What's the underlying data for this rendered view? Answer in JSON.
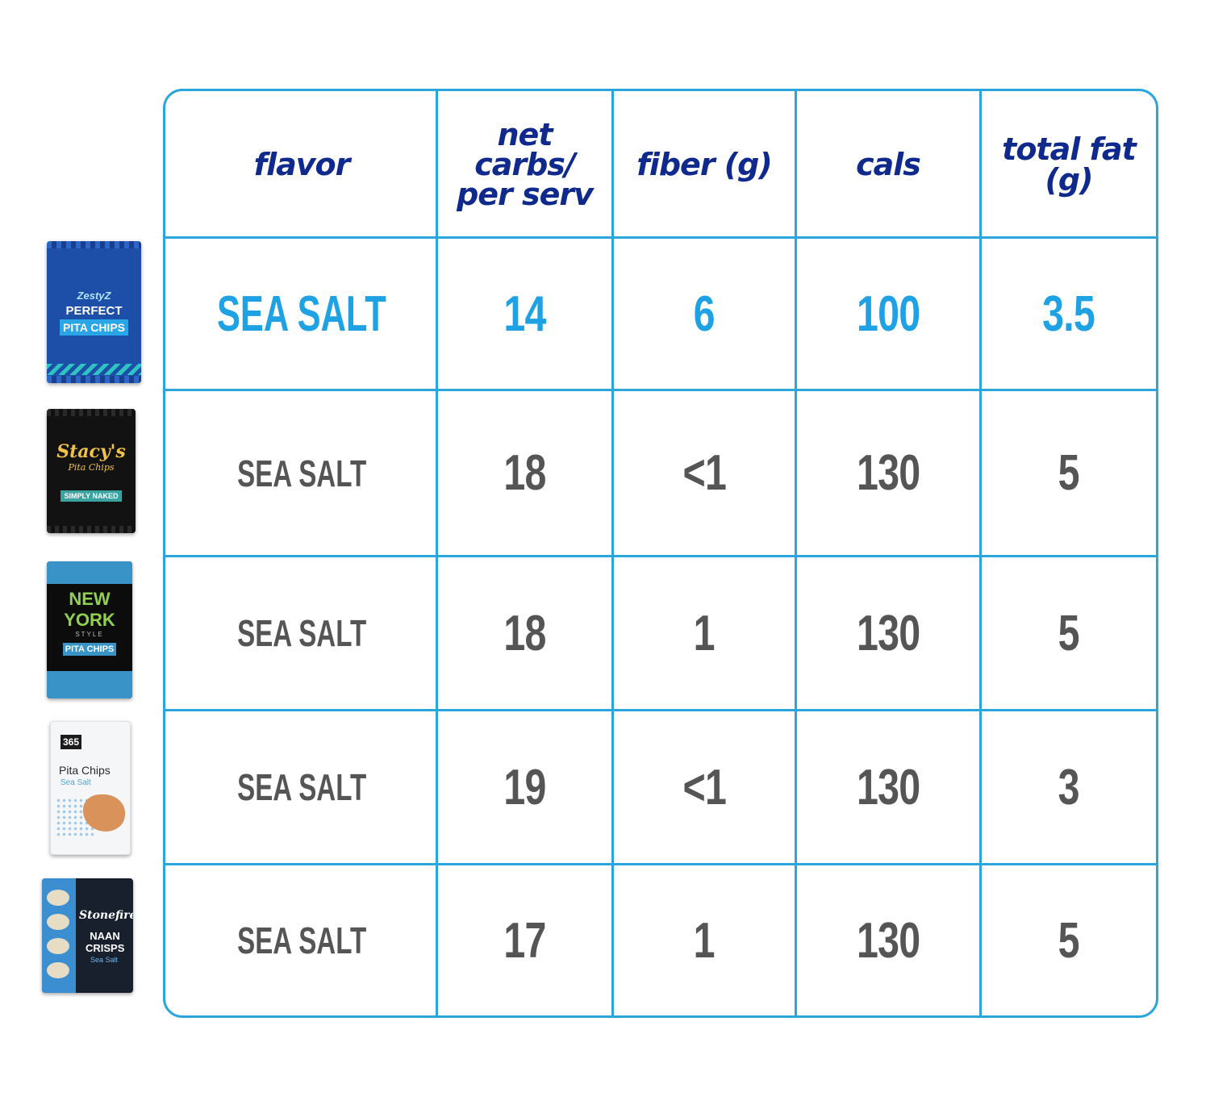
{
  "products": [
    {
      "name": "zesty-z-perfect-pita-chips",
      "brand": "ZestyZ",
      "title": "PERFECT",
      "subtitle": "PITA CHIPS"
    },
    {
      "name": "stacys-pita-chips",
      "brand": "Stacy's",
      "title": "Pita Chips",
      "subtitle": "SIMPLY NAKED"
    },
    {
      "name": "new-york-style-pita-chips",
      "brand": "NEW YORK",
      "title": "STYLE",
      "subtitle": "PITA CHIPS"
    },
    {
      "name": "365-pita-chips",
      "brand": "365",
      "title": "Pita Chips",
      "subtitle": "Sea Salt"
    },
    {
      "name": "stonefire-naan-crisps",
      "brand": "Stonefire",
      "title": "NAAN CRISPS",
      "subtitle": "Sea Salt"
    }
  ],
  "table": {
    "headers": [
      "flavor",
      "net carbs/ per serv",
      "fiber (g)",
      "cals",
      "total fat (g)"
    ],
    "highlight_color": "#1fa2e3",
    "text_color": "#555555",
    "header_color": "#0f2a8c",
    "border_color": "#2aa6dd"
  },
  "chart_data": {
    "type": "table",
    "columns": [
      "flavor",
      "net carbs/ per serv",
      "fiber (g)",
      "cals",
      "total fat (g)"
    ],
    "rows": [
      [
        "SEA SALT",
        "14",
        "6",
        "100",
        "3.5"
      ],
      [
        "SEA SALT",
        "18",
        "<1",
        "130",
        "5"
      ],
      [
        "SEA SALT",
        "18",
        "1",
        "130",
        "5"
      ],
      [
        "SEA SALT",
        "19",
        "<1",
        "130",
        "3"
      ],
      [
        "SEA SALT",
        "17",
        "1",
        "130",
        "5"
      ]
    ],
    "highlighted_row": 0
  }
}
